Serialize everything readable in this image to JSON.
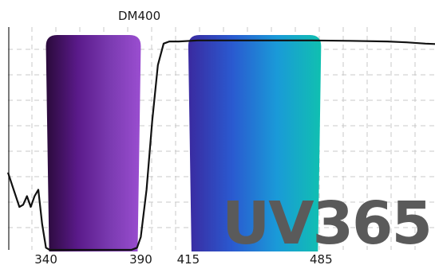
{
  "chart_data": {
    "type": "line",
    "title": "",
    "xlabel": "",
    "ylabel": "",
    "grid": true,
    "xlim": [
      320,
      545
    ],
    "ylim": [
      0,
      100
    ],
    "x_ticks": [
      340,
      390,
      415,
      485
    ],
    "x_tick_labels": [
      "340",
      "390",
      "415",
      "485"
    ],
    "bands": [
      {
        "name": "excitation",
        "x_start": 340,
        "x_end": 390,
        "colors": [
          "#2a0a3a",
          "#5a1a8a",
          "#7a3ab0",
          "#9a4ed0"
        ]
      },
      {
        "name": "emission",
        "x_start": 415,
        "x_end": 485,
        "colors": [
          "#3a2aa0",
          "#2a5ad0",
          "#1a9ad8",
          "#10c0b0"
        ]
      }
    ],
    "series": [
      {
        "name": "DM400",
        "color": "#111111",
        "x": [
          320,
          323,
          326,
          328,
          330,
          332,
          334,
          336,
          338,
          340,
          342,
          345,
          350,
          360,
          370,
          380,
          385,
          388,
          390,
          393,
          396,
          399,
          402,
          405,
          410,
          420,
          440,
          460,
          480,
          500,
          520,
          530,
          540,
          545
        ],
        "y": [
          36,
          28,
          20,
          21,
          25,
          20,
          25,
          28,
          12,
          1,
          0,
          0,
          0,
          0,
          0,
          0,
          0,
          1,
          6,
          28,
          60,
          86,
          96,
          97,
          97,
          97.5,
          97.5,
          97.5,
          97.5,
          97.3,
          97,
          96.6,
          96,
          95.8
        ]
      }
    ],
    "annotations": [
      {
        "text": "DM400"
      }
    ],
    "watermark": {
      "text": "UV365"
    }
  }
}
